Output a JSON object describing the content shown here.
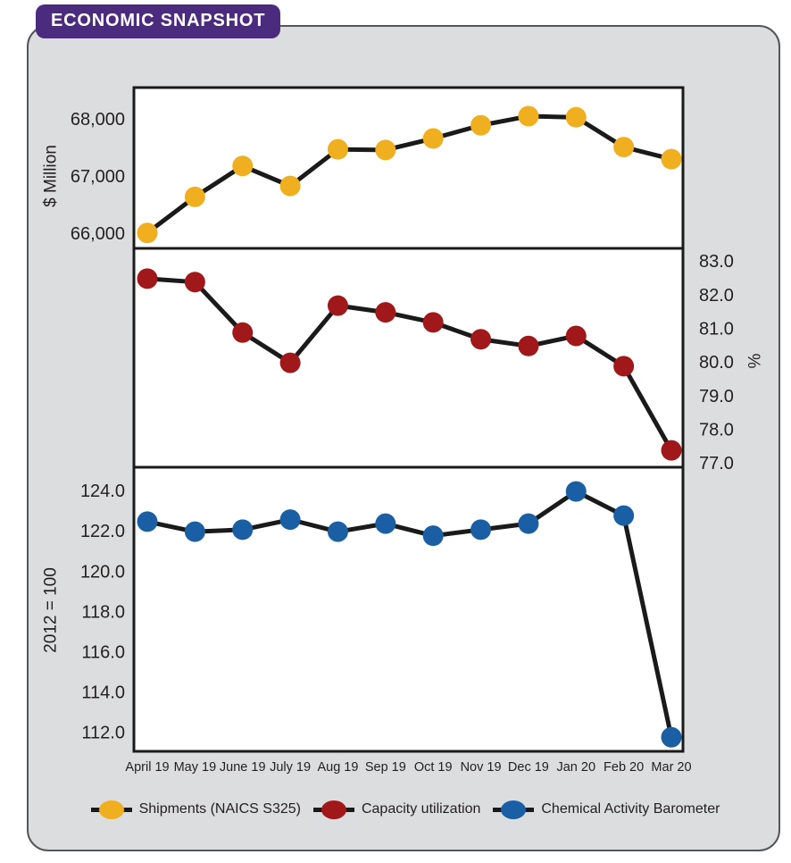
{
  "title": "ECONOMIC SNAPSHOT",
  "colors": {
    "badge_purple": "#4B2B7D",
    "card_background": "#DCDDDE",
    "card_border": "#55565A",
    "line_black": "#1A1A1A",
    "text": "#231F20",
    "shipments_yellow": "#F0AF1E",
    "capacity_red": "#A1181B",
    "barometer_blue": "#1A5FA4"
  },
  "chart_data": {
    "type": "line",
    "categories": [
      "April 19",
      "May 19",
      "June 19",
      "July 19",
      "Aug 19",
      "Sep 19",
      "Oct 19",
      "Nov 19",
      "Dec 19",
      "Jan 20",
      "Feb 20",
      "Mar 20"
    ],
    "grid": false,
    "panels": [
      {
        "series_name": "Shipments (NAICS S325)",
        "axis_title": "$ Million",
        "axis_side": "left",
        "ticks": [
          68000,
          67000,
          66000
        ],
        "tick_labels": [
          "68,000",
          "67,000",
          "66,000"
        ],
        "ylim": [
          65750,
          68560
        ],
        "color": "#F0AF1E",
        "values": [
          66020,
          66650,
          67190,
          66840,
          67480,
          67470,
          67670,
          67900,
          68060,
          68040,
          67520,
          67310
        ]
      },
      {
        "series_name": "Capacity utilization",
        "axis_title": "%",
        "axis_side": "right",
        "ticks": [
          83.0,
          82.0,
          81.0,
          80.0,
          79.0,
          78.0,
          77.0
        ],
        "tick_labels": [
          "83.0",
          "82.0",
          "81.0",
          "80.0",
          "79.0",
          "78.0",
          "77.0"
        ],
        "ylim": [
          76.9,
          83.4
        ],
        "color": "#A1181B",
        "values": [
          82.5,
          82.4,
          80.9,
          80.0,
          81.7,
          81.5,
          81.2,
          80.7,
          80.5,
          80.8,
          79.9,
          77.4
        ]
      },
      {
        "series_name": "Chemical Activity Barometer",
        "axis_title": "2012 = 100",
        "axis_side": "left",
        "ticks": [
          124.0,
          122.0,
          120.0,
          118.0,
          116.0,
          114.0,
          112.0
        ],
        "tick_labels": [
          "124.0",
          "122.0",
          "120.0",
          "118.0",
          "116.0",
          "114.0",
          "112.0"
        ],
        "ylim": [
          111.1,
          125.2
        ],
        "color": "#1A5FA4",
        "values": [
          122.5,
          122.0,
          122.1,
          122.6,
          122.0,
          122.4,
          121.8,
          122.1,
          122.4,
          124.0,
          122.8,
          111.8
        ]
      }
    ]
  },
  "legend": {
    "items": [
      {
        "label": "Shipments (NAICS S325)",
        "color": "#F0AF1E"
      },
      {
        "label": "Capacity utilization",
        "color": "#A1181B"
      },
      {
        "label": "Chemical Activity Barometer",
        "color": "#1A5FA4"
      }
    ]
  }
}
